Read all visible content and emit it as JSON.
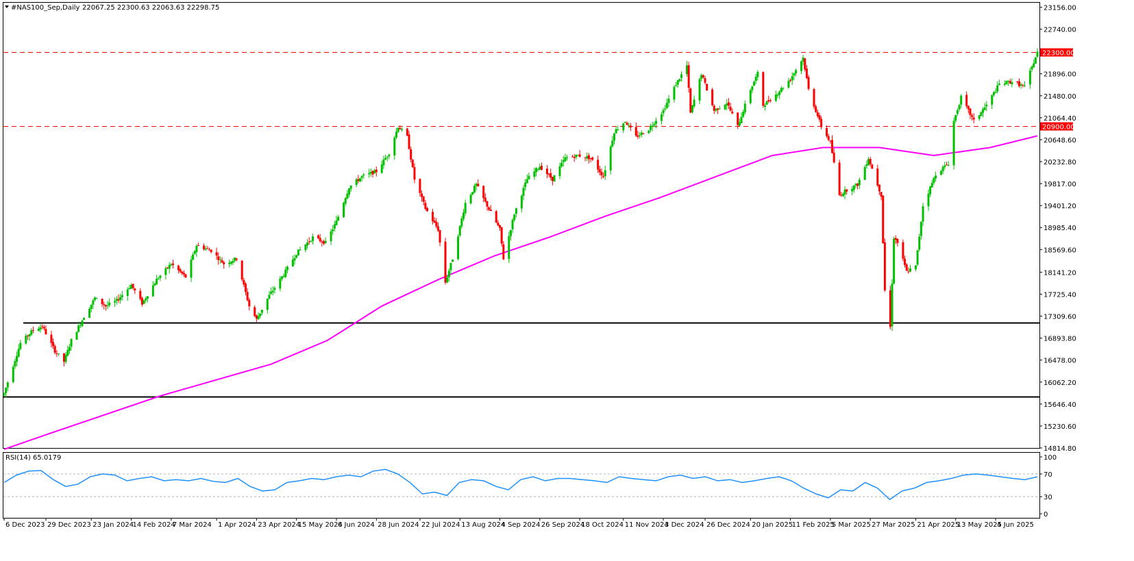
{
  "header": {
    "symbol": "#NAS100_Sep,Daily",
    "ohlc": "22067.25 22300.63 22063.63 22298.75"
  },
  "rsi_header": {
    "label": "RSI(14) 65.0179"
  },
  "colors": {
    "bull": "#00c000",
    "bear": "#ff0000",
    "ma": "#ff00ff",
    "rsi": "#1e90ff",
    "resistance": "#ff0000",
    "support": "#000000"
  },
  "chart_data": [
    {
      "type": "candlestick",
      "symbol": "#NAS100_Sep",
      "timeframe": "Daily",
      "ylim": [
        14814.8,
        23240
      ],
      "y_ticks": [
        "23156.00",
        "22740.00",
        "21896.00",
        "21480.00",
        "21064.40",
        "20648.60",
        "20232.80",
        "19817.00",
        "19401.20",
        "18985.40",
        "18569.60",
        "18141.20",
        "17725.40",
        "17309.60",
        "16893.80",
        "16478.00",
        "16062.20",
        "15646.40",
        "15230.60",
        "14814.80"
      ],
      "x_ticks": [
        "6 Dec 2023",
        "29 Dec 2023",
        "23 Jan 2024",
        "14 Feb 2024",
        "7 Mar 2024",
        "1 Apr 2024",
        "23 Apr 2024",
        "15 May 2024",
        "6 Jun 2024",
        "28 Jun 2024",
        "22 Jul 2024",
        "13 Aug 2024",
        "4 Sep 2024",
        "26 Sep 2024",
        "18 Oct 2024",
        "11 Nov 2024",
        "3 Dec 2024",
        "26 Dec 2024",
        "20 Jan 2025",
        "11 Feb 2025",
        "5 Mar 2025",
        "27 Mar 2025",
        "21 Apr 2025",
        "13 May 2025",
        "4 Jun 2025"
      ],
      "price_path": [
        [
          "6 Dec 2023",
          15850
        ],
        [
          "15 Dec 2023",
          16800
        ],
        [
          "22 Dec 2023",
          17050
        ],
        [
          "27 Dec 2023",
          17120
        ],
        [
          "3 Jan 2024",
          16650
        ],
        [
          "8 Jan 2024",
          16450
        ],
        [
          "12 Jan 2024",
          16850
        ],
        [
          "19 Jan 2024",
          17300
        ],
        [
          "25 Jan 2024",
          17650
        ],
        [
          "31 Jan 2024",
          17500
        ],
        [
          "6 Feb 2024",
          17600
        ],
        [
          "14 Feb 2024",
          17900
        ],
        [
          "20 Feb 2024",
          17550
        ],
        [
          "28 Feb 2024",
          18000
        ],
        [
          "7 Mar 2024",
          18300
        ],
        [
          "15 Mar 2024",
          18050
        ],
        [
          "21 Mar 2024",
          18650
        ],
        [
          "29 Mar 2024",
          18550
        ],
        [
          "5 Apr 2024",
          18300
        ],
        [
          "12 Apr 2024",
          18400
        ],
        [
          "19 Apr 2024",
          17500
        ],
        [
          "23 Apr 2024",
          17250
        ],
        [
          "30 Apr 2024",
          17700
        ],
        [
          "8 May 2024",
          18100
        ],
        [
          "15 May 2024",
          18500
        ],
        [
          "24 May 2024",
          18800
        ],
        [
          "31 May 2024",
          18700
        ],
        [
          "6 Jun 2024",
          19100
        ],
        [
          "13 Jun 2024",
          19750
        ],
        [
          "20 Jun 2024",
          19950
        ],
        [
          "28 Jun 2024",
          20050
        ],
        [
          "5 Jul 2024",
          20400
        ],
        [
          "10 Jul 2024",
          20900
        ],
        [
          "15 Jul 2024",
          20700
        ],
        [
          "19 Jul 2024",
          19900
        ],
        [
          "25 Jul 2024",
          19350
        ],
        [
          "1 Aug 2024",
          18950
        ],
        [
          "5 Aug 2024",
          17950
        ],
        [
          "9 Aug 2024",
          18400
        ],
        [
          "16 Aug 2024",
          19450
        ],
        [
          "22 Aug 2024",
          19800
        ],
        [
          "28 Aug 2024",
          19400
        ],
        [
          "4 Sep 2024",
          18950
        ],
        [
          "6 Sep 2024",
          18400
        ],
        [
          "12 Sep 2024",
          19250
        ],
        [
          "19 Sep 2024",
          19900
        ],
        [
          "26 Sep 2024",
          20150
        ],
        [
          "3 Oct 2024",
          19900
        ],
        [
          "10 Oct 2024",
          20300
        ],
        [
          "17 Oct 2024",
          20350
        ],
        [
          "24 Oct 2024",
          20300
        ],
        [
          "31 Oct 2024",
          19950
        ],
        [
          "6 Nov 2024",
          20800
        ],
        [
          "12 Nov 2024",
          21000
        ],
        [
          "18 Nov 2024",
          20700
        ],
        [
          "25 Nov 2024",
          20850
        ],
        [
          "3 Dec 2024",
          21200
        ],
        [
          "10 Dec 2024",
          21700
        ],
        [
          "16 Dec 2024",
          22050
        ],
        [
          "18 Dec 2024",
          21150
        ],
        [
          "24 Dec 2024",
          21900
        ],
        [
          "31 Dec 2024",
          21200
        ],
        [
          "7 Jan 2025",
          21350
        ],
        [
          "13 Jan 2025",
          20900
        ],
        [
          "20 Jan 2025",
          21600
        ],
        [
          "24 Jan 2025",
          21900
        ],
        [
          "27 Jan 2025",
          21300
        ],
        [
          "3 Feb 2025",
          21500
        ],
        [
          "11 Feb 2025",
          21800
        ],
        [
          "18 Feb 2025",
          22200
        ],
        [
          "21 Feb 2025",
          21600
        ],
        [
          "28 Feb 2025",
          20900
        ],
        [
          "5 Mar 2025",
          20600
        ],
        [
          "10 Mar 2025",
          19600
        ],
        [
          "14 Mar 2025",
          19700
        ],
        [
          "20 Mar 2025",
          19800
        ],
        [
          "26 Mar 2025",
          20300
        ],
        [
          "2 Apr 2025",
          19600
        ],
        [
          "4 Apr 2025",
          17800
        ],
        [
          "7 Apr 2025",
          17100
        ],
        [
          "9 Apr 2025",
          18800
        ],
        [
          "11 Apr 2025",
          18700
        ],
        [
          "16 Apr 2025",
          18150
        ],
        [
          "21 Apr 2025",
          18250
        ],
        [
          "25 Apr 2025",
          19400
        ],
        [
          "2 May 2025",
          20000
        ],
        [
          "9 May 2025",
          20200
        ],
        [
          "12 May 2025",
          21000
        ],
        [
          "16 May 2025",
          21450
        ],
        [
          "23 May 2025",
          21000
        ],
        [
          "30 May 2025",
          21300
        ],
        [
          "6 Jun 2025",
          21700
        ],
        [
          "13 Jun 2025",
          21750
        ],
        [
          "20 Jun 2025",
          21650
        ],
        [
          "27 Jun 2025",
          22300
        ]
      ],
      "moving_average_path": [
        [
          "6 Dec 2023",
          14790
        ],
        [
          "1 Jan 2024",
          15100
        ],
        [
          "1 Mar 2024",
          15800
        ],
        [
          "1 May 2024",
          16400
        ],
        [
          "1 Jun 2024",
          16850
        ],
        [
          "1 Jul 2024",
          17500
        ],
        [
          "1 Aug 2024",
          18000
        ],
        [
          "1 Sep 2024",
          18450
        ],
        [
          "1 Oct 2024",
          18800
        ],
        [
          "1 Nov 2024",
          19200
        ],
        [
          "1 Dec 2024",
          19550
        ],
        [
          "1 Jan 2025",
          19950
        ],
        [
          "1 Feb 2025",
          20350
        ],
        [
          "1 Mar 2025",
          20500
        ],
        [
          "1 Apr 2025",
          20500
        ],
        [
          "1 May 2025",
          20350
        ],
        [
          "1 Jun 2025",
          20500
        ],
        [
          "27 Jun 2025",
          20720
        ]
      ],
      "horizontal_levels": [
        {
          "kind": "resistance",
          "style": "dashed",
          "price": 22300.0,
          "label": "22300.00"
        },
        {
          "kind": "resistance",
          "style": "dashed",
          "price": 20900.0,
          "label": "20900.00"
        },
        {
          "kind": "support",
          "style": "solid",
          "price": 17180
        },
        {
          "kind": "support",
          "style": "solid",
          "price": 15780
        }
      ]
    },
    {
      "type": "line",
      "indicator": "RSI(14)",
      "current_value": 65.0179,
      "ylim": [
        0,
        100
      ],
      "y_ticks": [
        "100",
        "70",
        "30",
        "0"
      ],
      "levels": [
        70,
        30
      ],
      "values": [
        55,
        68,
        75,
        76,
        60,
        48,
        52,
        65,
        70,
        68,
        58,
        62,
        65,
        58,
        60,
        58,
        62,
        57,
        55,
        62,
        48,
        40,
        42,
        55,
        58,
        62,
        60,
        65,
        68,
        65,
        75,
        78,
        70,
        55,
        35,
        38,
        32,
        55,
        60,
        58,
        48,
        42,
        60,
        65,
        58,
        62,
        62,
        60,
        58,
        55,
        65,
        62,
        60,
        58,
        65,
        68,
        62,
        65,
        58,
        60,
        55,
        58,
        62,
        65,
        58,
        45,
        35,
        28,
        42,
        40,
        55,
        45,
        25,
        40,
        45,
        55,
        58,
        62,
        68,
        70,
        68,
        65,
        62,
        60,
        65
      ]
    }
  ]
}
